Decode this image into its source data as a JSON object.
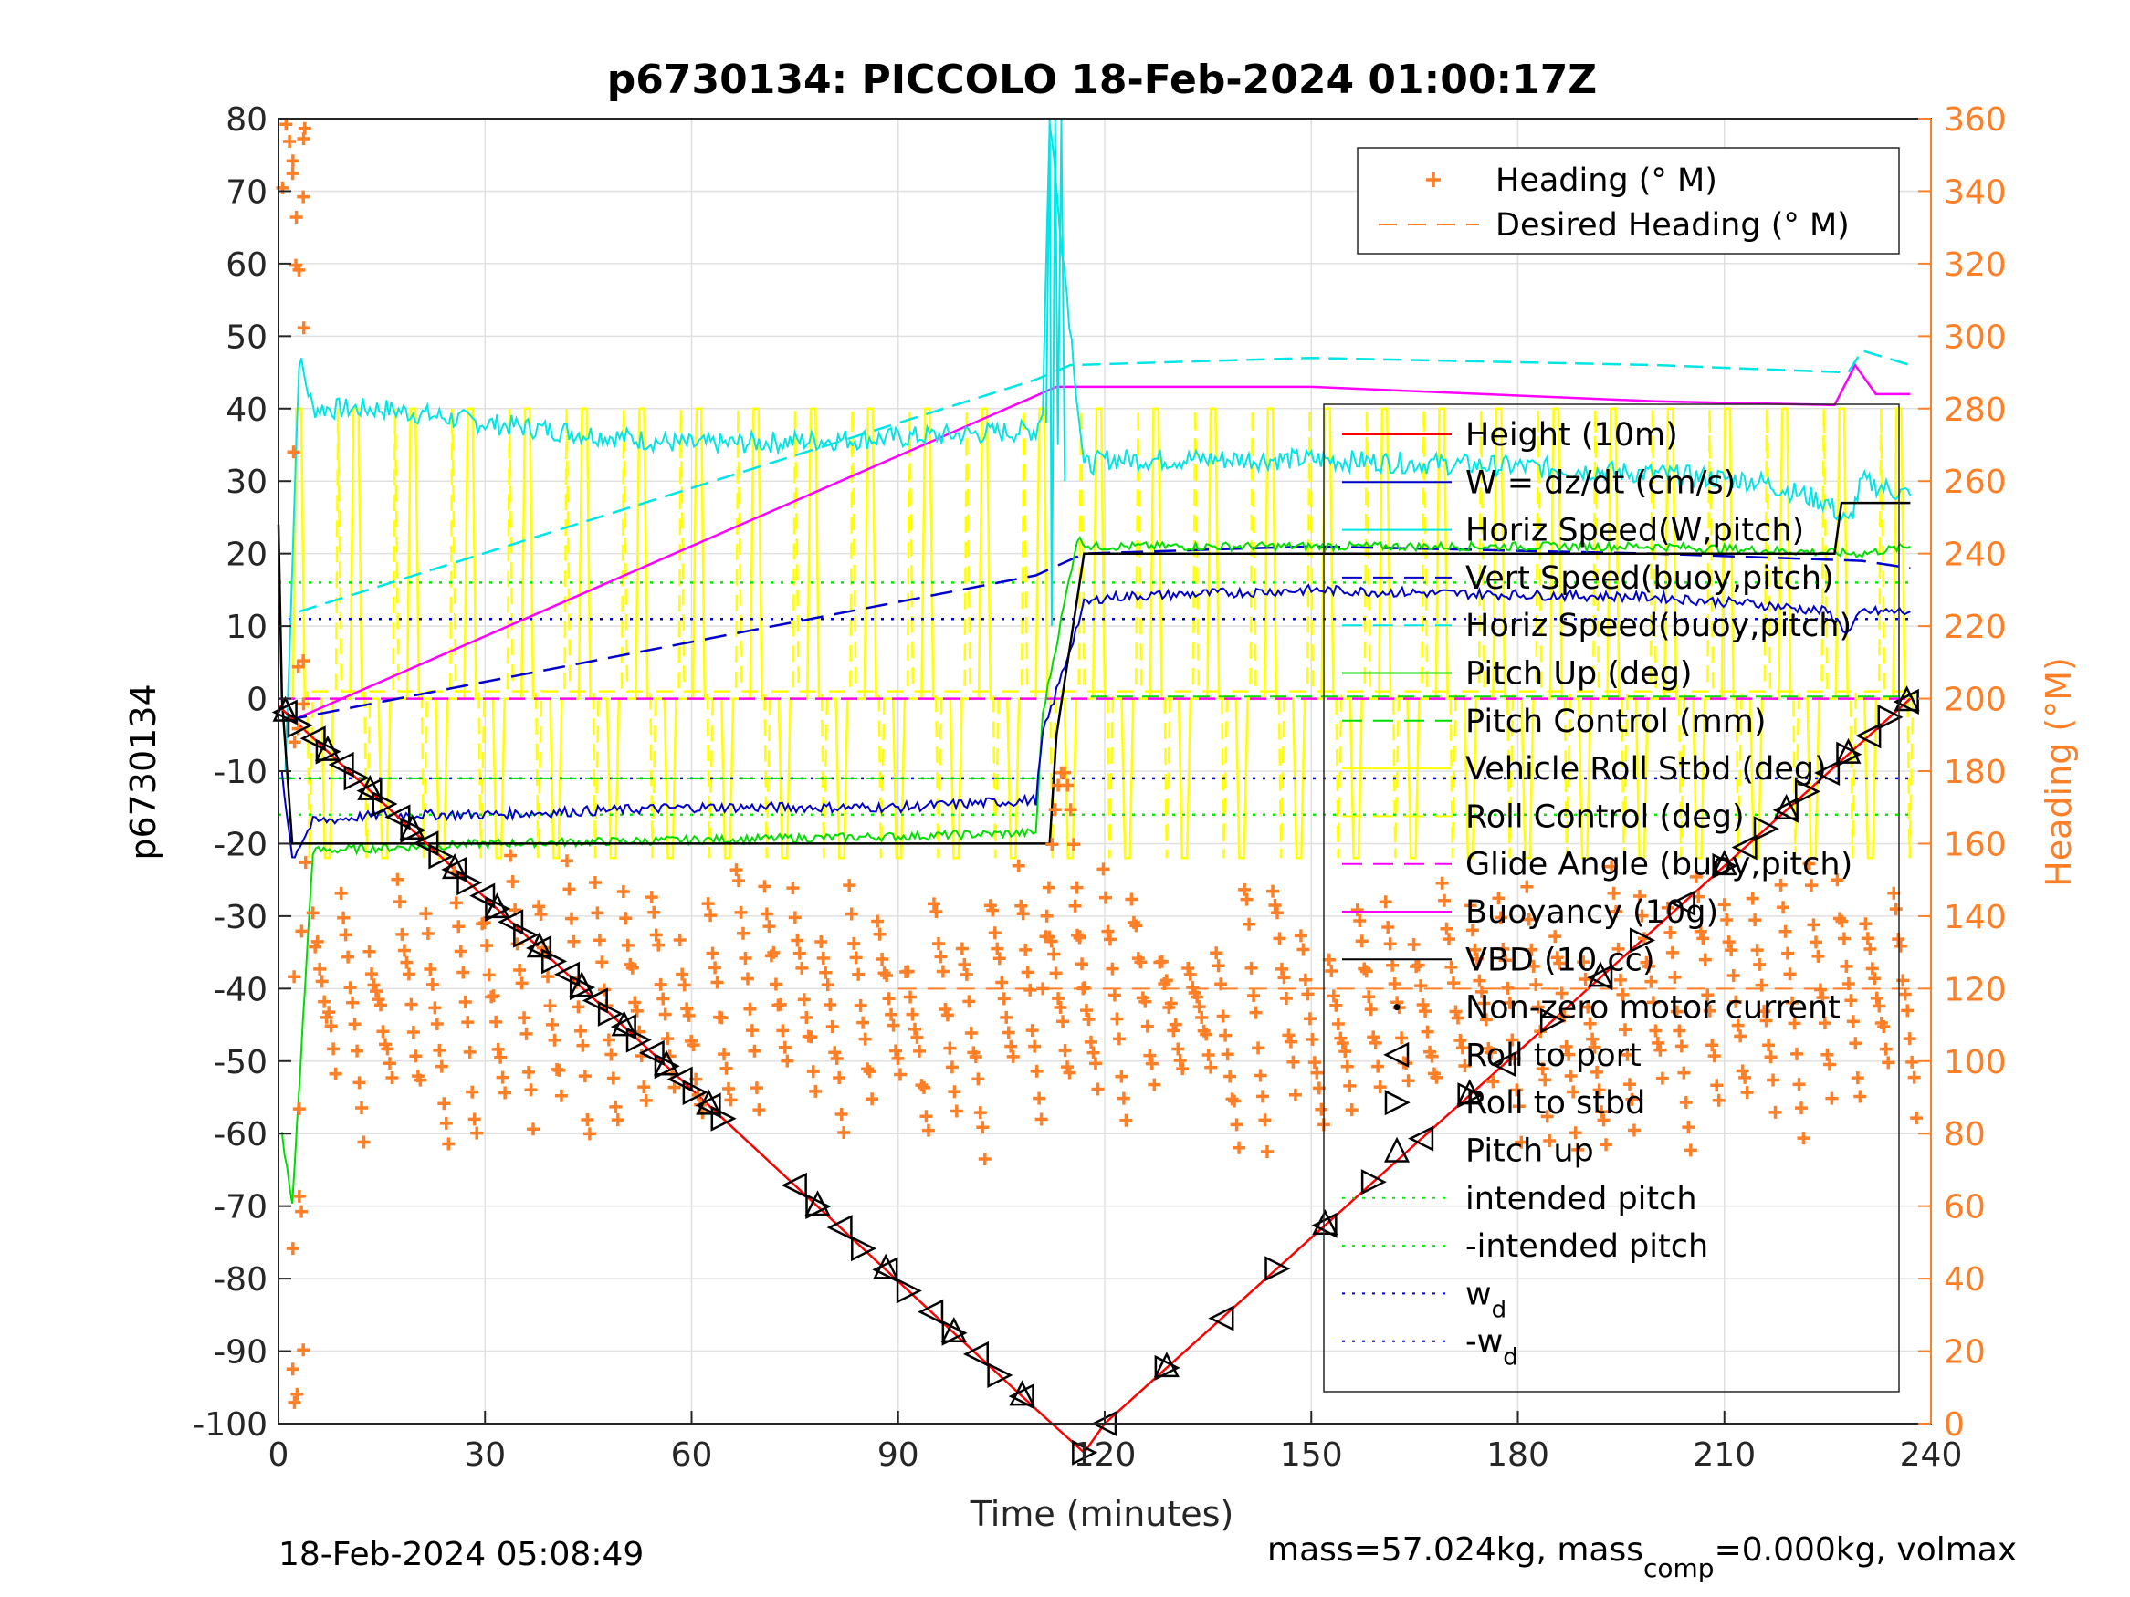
{
  "chart_data": {
    "type": "line",
    "title": "p6730134: PICCOLO 18-Feb-2024 01:00:17Z",
    "xlabel": "Time (minutes)",
    "ylabel_left": "p6730134",
    "ylabel_right": "Heading (°M)",
    "xlim": [
      0,
      240
    ],
    "ylim_left": [
      -100,
      80
    ],
    "ylim_right": [
      0,
      360
    ],
    "xticks": [
      0,
      30,
      60,
      90,
      120,
      150,
      180,
      210,
      240
    ],
    "yticks_left": [
      80,
      70,
      60,
      50,
      40,
      30,
      20,
      10,
      0,
      -10,
      -20,
      -30,
      -40,
      -50,
      -60,
      -70,
      -80,
      -90,
      -100
    ],
    "yticks_right": [
      360,
      340,
      320,
      300,
      280,
      260,
      240,
      220,
      200,
      180,
      160,
      140,
      120,
      100,
      80,
      60,
      40,
      20,
      0
    ],
    "grid": true,
    "footer_left": "18-Feb-2024 05:08:49",
    "footer_right": {
      "prefix": "mass=57.024kg, mass",
      "subscript": "comp",
      "suffix": "=0.000kg, volmax"
    },
    "legend_top": [
      {
        "label": "Heading (° M)",
        "color": "#ff7f27",
        "style": "plus"
      },
      {
        "label": "Desired Heading (° M)",
        "color": "#ff7f27",
        "style": "dashed"
      }
    ],
    "legend_main": [
      {
        "label": "Height (10m)",
        "color": "#ff0000",
        "style": "solid"
      },
      {
        "label": "W = dz/dt (cm/s)",
        "color": "#0000cc",
        "style": "solid"
      },
      {
        "label": "Horiz Speed(W,pitch)",
        "color": "#00e5e5",
        "style": "solid"
      },
      {
        "label": "Vert Speed(buoy,pitch)",
        "color": "#0000cc",
        "style": "dashed"
      },
      {
        "label": "Horiz Speed(buoy,pitch)",
        "color": "#00e5e5",
        "style": "dashed"
      },
      {
        "label": "Pitch Up (deg)",
        "color": "#00dd00",
        "style": "solid"
      },
      {
        "label": "Pitch Control (mm)",
        "color": "#00dd00",
        "style": "dashed"
      },
      {
        "label": "Vehicle Roll Stbd (deg)",
        "color": "#ffff00",
        "style": "solid"
      },
      {
        "label": "Roll Control (deg)",
        "color": "#ffff00",
        "style": "dashed"
      },
      {
        "label": "Glide Angle (buoy,pitch)",
        "color": "#ff00ff",
        "style": "dashed"
      },
      {
        "label": "Buoyancy (10g)",
        "color": "#ff00ff",
        "style": "solid"
      },
      {
        "label": "VBD (10 cc)",
        "color": "#000000",
        "style": "solid"
      },
      {
        "label": "Non-zero motor current",
        "color": "#000000",
        "style": "dot"
      },
      {
        "label": "Roll to port",
        "color": "#000000",
        "style": "tri-left"
      },
      {
        "label": "Roll to stbd",
        "color": "#000000",
        "style": "tri-right"
      },
      {
        "label": "Pitch up",
        "color": "#000000",
        "style": "tri-up"
      },
      {
        "label": "intended pitch",
        "color": "#00ee00",
        "style": "dotted"
      },
      {
        "label": "-intended pitch",
        "color": "#00ee00",
        "style": "dotted"
      },
      {
        "label": "w",
        "sub": "d",
        "color": "#0000cc",
        "style": "dotted"
      },
      {
        "label": "-w",
        "sub": "d",
        "color": "#0000cc",
        "style": "dotted"
      }
    ],
    "series": [
      {
        "name": "Height (10m)",
        "x": [
          0,
          110,
          117,
          120,
          237
        ],
        "y": [
          -1,
          -98,
          -104,
          -100,
          0
        ]
      },
      {
        "name": "W = dz/dt (cm/s)",
        "x": [
          0.5,
          2,
          5,
          15,
          30,
          60,
          90,
          110,
          111,
          117,
          120,
          150,
          170,
          200,
          215,
          225,
          228,
          230,
          237
        ],
        "y": [
          -10,
          -22,
          -17,
          -16,
          -16,
          -15,
          -15,
          -14,
          -5,
          13,
          14,
          15,
          14.5,
          14,
          13,
          12,
          9,
          12,
          12
        ]
      },
      {
        "name": "Horiz Speed(W,pitch)",
        "x": [
          1,
          3,
          5,
          15,
          30,
          60,
          90,
          110,
          111,
          112,
          117,
          120,
          150,
          180,
          200,
          215,
          225,
          228,
          230,
          237
        ],
        "y": [
          -10,
          47,
          40,
          40,
          38,
          35,
          36,
          37,
          40,
          80,
          32,
          33,
          33,
          32,
          31,
          30,
          27,
          24,
          30,
          28
        ]
      },
      {
        "name": "Vert Speed(buoy,pitch)",
        "x": [
          1,
          110,
          117,
          150,
          200,
          230,
          237
        ],
        "y": [
          -3,
          17,
          20,
          21,
          20,
          19,
          18
        ]
      },
      {
        "name": "Horiz Speed(buoy,pitch)",
        "x": [
          3,
          110,
          115,
          150,
          200,
          228,
          230,
          237
        ],
        "y": [
          12,
          44,
          46,
          47,
          46,
          45,
          48,
          46
        ]
      },
      {
        "name": "Pitch Up (deg)",
        "x": [
          0.5,
          2,
          5,
          30,
          60,
          90,
          110,
          111,
          116,
          118,
          150,
          200,
          230,
          237
        ],
        "y": [
          -60,
          -70,
          -21,
          -20,
          -19.5,
          -19,
          -18.5,
          -2,
          22,
          21,
          21,
          21,
          20,
          21
        ]
      },
      {
        "name": "Pitch Control (mm)",
        "x": [
          0,
          237
        ],
        "y": [
          -11,
          0
        ]
      },
      {
        "name": "Glide Angle (buoy,pitch)",
        "x": [
          0,
          237
        ],
        "y": [
          0,
          0
        ]
      },
      {
        "name": "Buoyancy (10g)",
        "x": [
          2,
          113,
          150,
          200,
          226,
          229,
          232,
          237
        ],
        "y": [
          -3,
          43,
          43,
          41,
          40.5,
          46,
          42,
          42
        ]
      },
      {
        "name": "VBD (10 cc)",
        "x": [
          0,
          0.5,
          2,
          112,
          113,
          117,
          118,
          226,
          227,
          237
        ],
        "y": [
          24,
          0,
          -20,
          -20,
          -5,
          20,
          20,
          20,
          27,
          27
        ]
      },
      {
        "name": "intended pitch",
        "x": [
          0,
          237
        ],
        "y": [
          16,
          16
        ]
      },
      {
        "name": "-intended pitch",
        "x": [
          0,
          237
        ],
        "y": [
          -16,
          -16
        ]
      },
      {
        "name": "w_d",
        "x": [
          0,
          237
        ],
        "y": [
          11,
          11
        ]
      },
      {
        "name": "-w_d",
        "x": [
          0,
          237
        ],
        "y": [
          -11,
          -11
        ]
      }
    ],
    "heading_desired_deg": 120
  }
}
